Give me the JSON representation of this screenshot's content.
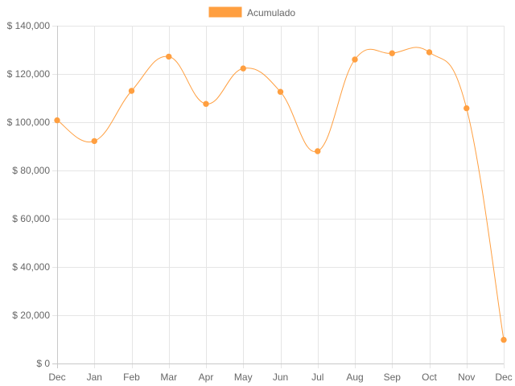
{
  "chart_data": {
    "type": "line",
    "title": "",
    "xlabel": "",
    "ylabel": "",
    "categories": [
      "Dec",
      "Jan",
      "Feb",
      "Mar",
      "Apr",
      "May",
      "Jun",
      "Jul",
      "Aug",
      "Sep",
      "Oct",
      "Nov",
      "Dec"
    ],
    "series": [
      {
        "name": "Acumulado",
        "color": "#ff9f40",
        "values": [
          100800,
          92200,
          113000,
          127200,
          107600,
          122300,
          112600,
          88000,
          126000,
          128600,
          129000,
          105800,
          9800
        ]
      }
    ],
    "ylim": [
      0,
      140000
    ],
    "y_ticks": [
      {
        "value": 0,
        "label": "$ 0"
      },
      {
        "value": 20000,
        "label": "$ 20,000"
      },
      {
        "value": 40000,
        "label": "$ 40,000"
      },
      {
        "value": 60000,
        "label": "$ 60,000"
      },
      {
        "value": 80000,
        "label": "$ 80,000"
      },
      {
        "value": 100000,
        "label": "$ 100,000"
      },
      {
        "value": 120000,
        "label": "$ 120,000"
      },
      {
        "value": 140000,
        "label": "$ 140,000"
      }
    ],
    "grid": true,
    "legend_position": "top-center"
  }
}
